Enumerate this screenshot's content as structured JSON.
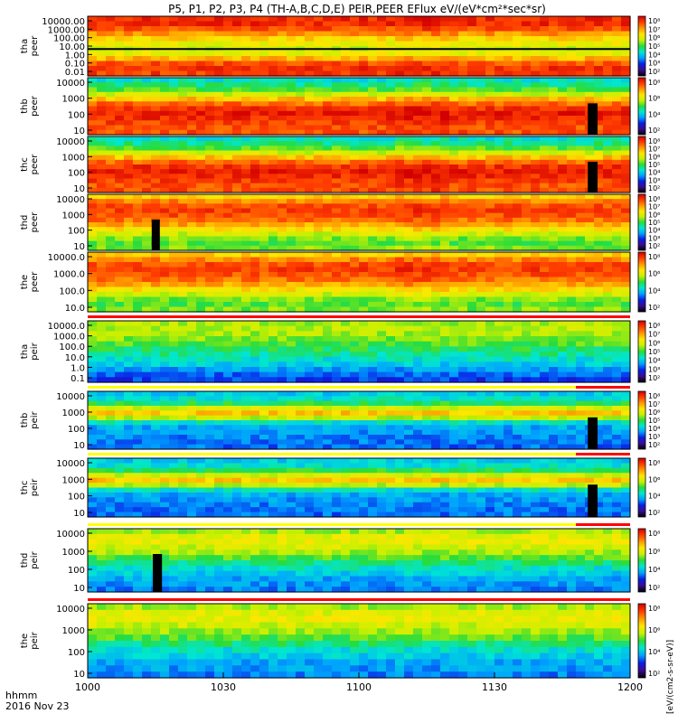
{
  "title": "P5, P1, P2, P3, P4 (TH-A,B,C,D,E) PEIR,PEER EFlux eV/(eV*cm²*sec*sr)",
  "time_label_line1": "hhmm",
  "time_label_line2": "2016 Nov 23",
  "x_ticks": [
    "1000",
    "1030",
    "1100",
    "1130",
    "1200"
  ],
  "colorbar_unit": "[eV/(cm2-s-sr-eV)]",
  "colors": {
    "background": "#ffffff",
    "frame": "#000000",
    "colormap": [
      "#000000",
      "#3a0d8f",
      "#0a1ee6",
      "#00a0ff",
      "#00e6d2",
      "#28dc3c",
      "#c8f000",
      "#ffe600",
      "#ff9600",
      "#ff3c00",
      "#d20000"
    ]
  },
  "chart_data": [
    {
      "type": "heatmap",
      "probe": "tha",
      "species": "peer",
      "ylabel_line1": "tha",
      "ylabel_line2": "peer",
      "yticks": [
        "10000.00",
        "1000.00",
        "100.00",
        "10.00",
        "1.00",
        "0.10",
        "0.01"
      ],
      "cbar_ticks": [
        "10⁸",
        "10⁷",
        "10⁶",
        "10⁵",
        "10⁴",
        "10³",
        "10²"
      ],
      "status_bar": "none",
      "xlim": [
        "1000",
        "1200"
      ],
      "yscale": "log"
    },
    {
      "type": "heatmap",
      "probe": "thb",
      "species": "peer",
      "ylabel_line1": "thb",
      "ylabel_line2": "peer",
      "yticks": [
        "10000",
        "1000",
        "100",
        "10"
      ],
      "cbar_ticks": [
        "10⁸",
        "10⁶",
        "10⁴",
        "10²"
      ],
      "status_bar": "none",
      "xlim": [
        "1000",
        "1200"
      ],
      "yscale": "log"
    },
    {
      "type": "heatmap",
      "probe": "thc",
      "species": "peer",
      "ylabel_line1": "thc",
      "ylabel_line2": "peer",
      "yticks": [
        "10000",
        "1000",
        "100",
        "10"
      ],
      "cbar_ticks": [
        "10⁸",
        "10⁷",
        "10⁶",
        "10⁵",
        "10⁴",
        "10³",
        "10²"
      ],
      "status_bar": "none",
      "xlim": [
        "1000",
        "1200"
      ],
      "yscale": "log"
    },
    {
      "type": "heatmap",
      "probe": "thd",
      "species": "peer",
      "ylabel_line1": "thd",
      "ylabel_line2": "peer",
      "yticks": [
        "10000",
        "1000",
        "100",
        "10"
      ],
      "cbar_ticks": [
        "10⁸",
        "10⁷",
        "10⁶",
        "10⁵",
        "10⁴",
        "10³",
        "10²"
      ],
      "status_bar": "none",
      "xlim": [
        "1000",
        "1200"
      ],
      "yscale": "log"
    },
    {
      "type": "heatmap",
      "probe": "the",
      "species": "peer",
      "ylabel_line1": "the",
      "ylabel_line2": "peer",
      "yticks": [
        "10000.0",
        "1000.0",
        "100.0",
        "10.0"
      ],
      "cbar_ticks": [
        "10⁸",
        "10⁶",
        "10⁴",
        "10²"
      ],
      "status_bar": "none",
      "xlim": [
        "1000",
        "1200"
      ],
      "yscale": "log"
    },
    {
      "type": "heatmap",
      "probe": "tha",
      "species": "peir",
      "ylabel_line1": "tha",
      "ylabel_line2": "peir",
      "yticks": [
        "10000.0",
        "1000.0",
        "100.0",
        "10.0",
        "1.0",
        "0.1"
      ],
      "cbar_ticks": [
        "10⁸",
        "10⁷",
        "10⁶",
        "10⁵",
        "10⁴",
        "10³",
        "10²"
      ],
      "status_bar": "red",
      "xlim": [
        "1000",
        "1200"
      ],
      "yscale": "log"
    },
    {
      "type": "heatmap",
      "probe": "thb",
      "species": "peir",
      "ylabel_line1": "thb",
      "ylabel_line2": "peir",
      "yticks": [
        "10000",
        "1000",
        "100",
        "10"
      ],
      "cbar_ticks": [
        "10⁸",
        "10⁷",
        "10⁶",
        "10⁵",
        "10⁴",
        "10³",
        "10²"
      ],
      "status_bar": "yellow-red",
      "xlim": [
        "1000",
        "1200"
      ],
      "yscale": "log"
    },
    {
      "type": "heatmap",
      "probe": "thc",
      "species": "peir",
      "ylabel_line1": "thc",
      "ylabel_line2": "peir",
      "yticks": [
        "10000",
        "1000",
        "100",
        "10"
      ],
      "cbar_ticks": [
        "10⁸",
        "10⁶",
        "10⁴",
        "10²"
      ],
      "status_bar": "yellow-red",
      "xlim": [
        "1000",
        "1200"
      ],
      "yscale": "log"
    },
    {
      "type": "heatmap",
      "probe": "thd",
      "species": "peir",
      "ylabel_line1": "thd",
      "ylabel_line2": "peir",
      "yticks": [
        "10000",
        "1000",
        "100",
        "10"
      ],
      "cbar_ticks": [
        "10⁸",
        "10⁶",
        "10⁴",
        "10²"
      ],
      "status_bar": "yellow-red",
      "xlim": [
        "1000",
        "1200"
      ],
      "yscale": "log"
    },
    {
      "type": "heatmap",
      "probe": "the",
      "species": "peir",
      "ylabel_line1": "the",
      "ylabel_line2": "peir",
      "yticks": [
        "10000",
        "1000",
        "100",
        "10"
      ],
      "cbar_ticks": [
        "10⁸",
        "10⁶",
        "10⁴",
        "10²"
      ],
      "status_bar": "red",
      "xlim": [
        "1000",
        "1200"
      ],
      "yscale": "log"
    }
  ]
}
